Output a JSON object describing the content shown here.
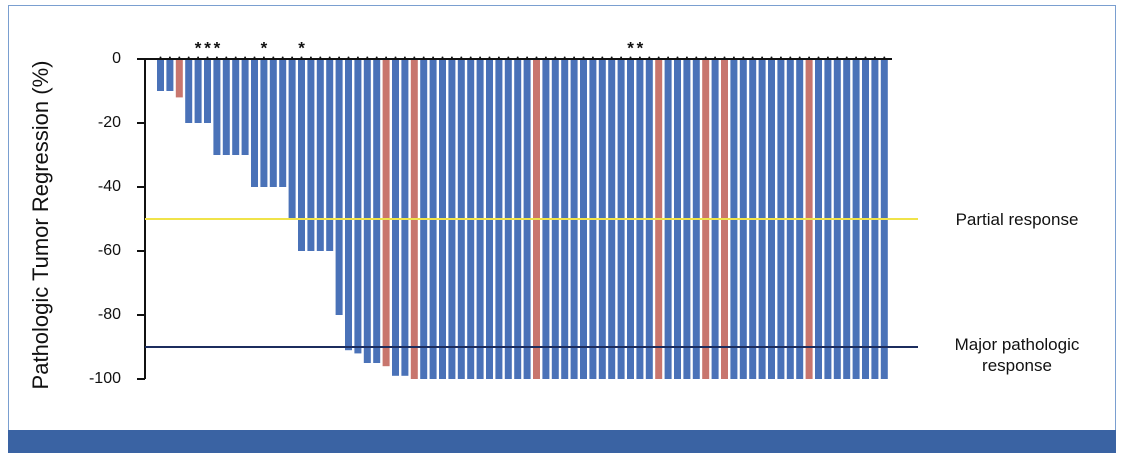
{
  "chart_data": {
    "type": "bar",
    "y_label": "Pathologic Tumor Regression (%)",
    "ylim": [
      -100,
      0
    ],
    "yticks": [
      0,
      -20,
      -40,
      -60,
      -80,
      -100
    ],
    "categories": [
      null,
      null,
      null,
      null,
      "*",
      "*",
      "*",
      null,
      null,
      null,
      null,
      "*",
      null,
      null,
      null,
      "*",
      null,
      null,
      null,
      null,
      null,
      null,
      null,
      null,
      null,
      null,
      null,
      null,
      null,
      null,
      null,
      null,
      null,
      null,
      null,
      null,
      null,
      null,
      null,
      null,
      null,
      null,
      null,
      null,
      null,
      null,
      null,
      null,
      null,
      null,
      "*",
      "*",
      null,
      null,
      null,
      null,
      null,
      null,
      null,
      null,
      null,
      null,
      null,
      null,
      null,
      null,
      null,
      null,
      null,
      null,
      null,
      null,
      null,
      null,
      null,
      null,
      null,
      null
    ],
    "values": [
      -10,
      -10,
      -12,
      -20,
      -20,
      -20,
      -30,
      -30,
      -30,
      -30,
      -40,
      -40,
      -40,
      -40,
      -50,
      -60,
      -60,
      -60,
      -60,
      -80,
      -91,
      -92,
      -95,
      -95,
      -96,
      -99,
      -99,
      -100,
      -100,
      -100,
      -100,
      -100,
      -100,
      -100,
      -100,
      -100,
      -100,
      -100,
      -100,
      -100,
      -100,
      -100,
      -100,
      -100,
      -100,
      -100,
      -100,
      -100,
      -100,
      -100,
      -100,
      -100,
      -100,
      -100,
      -100,
      -100,
      -100,
      -100,
      -100,
      -100,
      -100,
      -100,
      -100,
      -100,
      -100,
      -100,
      -100,
      -100,
      -100,
      -100,
      -100,
      -100,
      -100,
      -100,
      -100,
      -100,
      -100,
      -100
    ],
    "colors": [
      "#4a72b8",
      "#4a72b8",
      "#c8766e",
      "#4a72b8",
      "#4a72b8",
      "#4a72b8",
      "#4a72b8",
      "#4a72b8",
      "#4a72b8",
      "#4a72b8",
      "#4a72b8",
      "#4a72b8",
      "#4a72b8",
      "#4a72b8",
      "#4a72b8",
      "#4a72b8",
      "#4a72b8",
      "#4a72b8",
      "#4a72b8",
      "#4a72b8",
      "#4a72b8",
      "#4a72b8",
      "#4a72b8",
      "#4a72b8",
      "#c8766e",
      "#4a72b8",
      "#4a72b8",
      "#c8766e",
      "#4a72b8",
      "#4a72b8",
      "#4a72b8",
      "#4a72b8",
      "#4a72b8",
      "#4a72b8",
      "#4a72b8",
      "#4a72b8",
      "#4a72b8",
      "#4a72b8",
      "#4a72b8",
      "#4a72b8",
      "#c8766e",
      "#4a72b8",
      "#4a72b8",
      "#4a72b8",
      "#4a72b8",
      "#4a72b8",
      "#4a72b8",
      "#4a72b8",
      "#4a72b8",
      "#4a72b8",
      "#4a72b8",
      "#4a72b8",
      "#4a72b8",
      "#c8766e",
      "#4a72b8",
      "#4a72b8",
      "#4a72b8",
      "#4a72b8",
      "#c8766e",
      "#4a72b8",
      "#c8766e",
      "#4a72b8",
      "#4a72b8",
      "#4a72b8",
      "#4a72b8",
      "#4a72b8",
      "#4a72b8",
      "#4a72b8",
      "#4a72b8",
      "#c8766e",
      "#4a72b8",
      "#4a72b8",
      "#4a72b8",
      "#4a72b8",
      "#4a72b8",
      "#4a72b8",
      "#4a72b8",
      "#4a72b8"
    ],
    "reference_lines": [
      {
        "value": -50,
        "label": "Partial response",
        "color": "#f0e34a"
      },
      {
        "value": -90,
        "label": "Major pathologic response",
        "color": "#1c2d5e"
      }
    ]
  }
}
